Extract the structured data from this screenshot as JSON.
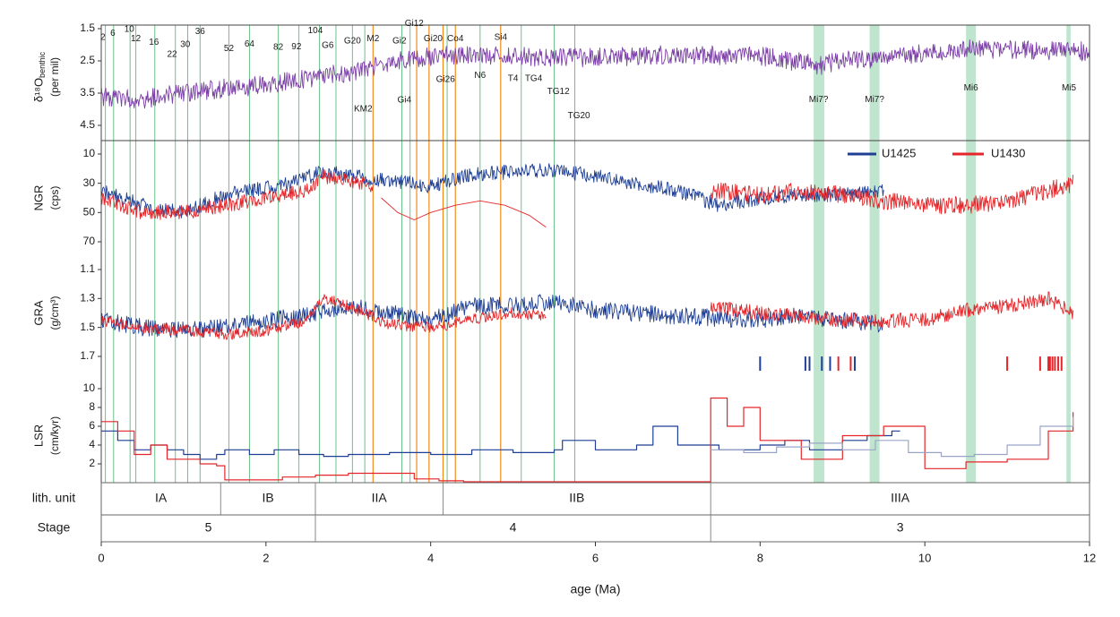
{
  "chart_data": {
    "type": "line",
    "x_axis": {
      "label": "age (Ma)",
      "range": [
        0,
        12
      ],
      "ticks": [
        "0",
        "2",
        "4",
        "6",
        "8",
        "10",
        "12"
      ]
    },
    "legend": {
      "placement": "top-right",
      "entries": [
        {
          "label": "U1425",
          "color": "#1f3f95"
        },
        {
          "label": "U1430",
          "color": "#e4262a"
        }
      ]
    },
    "panels": [
      {
        "id": "d18o",
        "ylabel": "δ¹⁸O",
        "ylabel_sub": "benthic",
        "ylabel_unit": "(per mil)",
        "ylim": [
          1.5,
          4.5
        ],
        "y_reversed": true,
        "yticks": [
          "1.5",
          "2.5",
          "3.5",
          "4.5"
        ],
        "series": [
          {
            "color": "#7b3fa6",
            "noise": 0.3,
            "x": [
              0,
              0.5,
              1,
              1.5,
              2,
              2.5,
              3,
              3.3,
              3.6,
              4,
              4.5,
              5,
              5.5,
              6,
              7,
              8,
              8.5,
              8.7,
              9,
              9.5,
              10,
              10.5,
              11,
              11.5,
              12
            ],
            "y": [
              3.6,
              3.7,
              3.5,
              3.35,
              3.25,
              3.05,
              2.85,
              2.7,
              2.5,
              2.35,
              2.3,
              2.35,
              2.4,
              2.4,
              2.3,
              2.35,
              2.55,
              2.65,
              2.5,
              2.4,
              2.25,
              2.1,
              2.15,
              2.2,
              2.2
            ]
          }
        ]
      },
      {
        "id": "ngr",
        "ylabel": "NGR",
        "ylabel_unit": "(cps)",
        "ylim": [
          10,
          70
        ],
        "y_reversed": true,
        "yticks": [
          "10",
          "30",
          "50",
          "70"
        ],
        "series": [
          {
            "name": "U1425",
            "color": "#1f3f95",
            "noise": 5,
            "x": [
              0,
              0.5,
              1,
              1.5,
              2,
              2.3,
              2.7,
              3,
              3.5,
              4,
              4.5,
              5,
              5.5,
              6,
              6.5,
              7,
              7.5,
              8,
              8.5,
              9,
              9.5
            ],
            "y": [
              35,
              45,
              50,
              38,
              33,
              30,
              22,
              25,
              28,
              32,
              24,
              22,
              21,
              25,
              30,
              35,
              45,
              40,
              38,
              38,
              35
            ]
          },
          {
            "name": "U1430",
            "color": "#e4262a",
            "noise": 5,
            "x": [
              0,
              0.5,
              1,
              1.5,
              2,
              2.5,
              2.7,
              3,
              3.3
            ],
            "y": [
              40,
              50,
              50,
              45,
              40,
              35,
              25,
              28,
              32
            ]
          },
          {
            "name": "U1430",
            "color": "#e4262a",
            "noise": 0,
            "x": [
              3.4,
              3.6,
              3.8,
              4,
              4.3,
              4.6,
              4.9,
              5.2,
              5.4
            ],
            "y": [
              40,
              50,
              55,
              50,
              45,
              42,
              45,
              52,
              60
            ]
          },
          {
            "name": "U1430",
            "color": "#e4262a",
            "noise": 6,
            "x": [
              7.4,
              8,
              8.5,
              9,
              9.5,
              10,
              10.5,
              11,
              11.5,
              11.8
            ],
            "y": [
              35,
              38,
              35,
              38,
              42,
              45,
              45,
              42,
              35,
              30
            ]
          }
        ]
      },
      {
        "id": "gra",
        "ylabel": "GRA",
        "ylabel_unit": "(g/cm³)",
        "ylim": [
          1.1,
          1.7
        ],
        "y_reversed": true,
        "yticks": [
          "1.1",
          "1.3",
          "1.5",
          "1.7"
        ],
        "series": [
          {
            "name": "U1425",
            "color": "#1f3f95",
            "noise": 0.06,
            "x": [
              0,
              0.5,
              1,
              1.5,
              2,
              2.5,
              2.7,
              3,
              3.5,
              4,
              4.5,
              5,
              5.5,
              6,
              7,
              8,
              8.5,
              9,
              9.5
            ],
            "y": [
              1.45,
              1.5,
              1.52,
              1.5,
              1.45,
              1.42,
              1.38,
              1.35,
              1.4,
              1.45,
              1.35,
              1.35,
              1.32,
              1.38,
              1.42,
              1.45,
              1.42,
              1.45,
              1.48
            ]
          },
          {
            "name": "U1430",
            "color": "#e4262a",
            "noise": 0.04,
            "x": [
              0,
              0.5,
              1,
              1.5,
              2,
              2.5,
              2.7,
              3,
              3.5,
              4,
              4.5,
              5,
              5.4
            ],
            "y": [
              1.45,
              1.5,
              1.52,
              1.55,
              1.52,
              1.45,
              1.3,
              1.35,
              1.48,
              1.5,
              1.45,
              1.4,
              1.42
            ]
          },
          {
            "name": "U1430",
            "color": "#e4262a",
            "noise": 0.05,
            "x": [
              7.4,
              8,
              8.5,
              9,
              9.5,
              10,
              10.5,
              11,
              11.5,
              11.8
            ],
            "y": [
              1.35,
              1.4,
              1.42,
              1.45,
              1.45,
              1.45,
              1.38,
              1.35,
              1.3,
              1.4
            ]
          }
        ],
        "tick_marks": {
          "y_value": 1.75,
          "blue": [
            8.0,
            8.55,
            8.6,
            8.75,
            8.85,
            9.15
          ],
          "red": [
            8.95,
            9.1,
            11.0,
            11.4,
            11.5,
            11.52,
            11.55,
            11.58,
            11.62,
            11.66
          ]
        }
      },
      {
        "id": "lsr",
        "ylabel": "LSR",
        "ylabel_unit": "(cm/kyr)",
        "ylim": [
          0,
          10
        ],
        "y_reversed": false,
        "yticks": [
          "2",
          "4",
          "6",
          "8",
          "10"
        ],
        "series": [
          {
            "name": "U1425",
            "color": "#1f3f95",
            "step": true,
            "x": [
              0,
              0.2,
              0.4,
              0.6,
              0.8,
              1.0,
              1.2,
              1.4,
              1.5,
              1.8,
              2.1,
              2.4,
              2.7,
              3.0,
              3.5,
              4.0,
              4.5,
              5.0,
              5.5,
              5.6,
              6.0,
              6.5,
              6.7,
              7.0,
              7.5,
              8.0,
              8.3,
              8.6,
              9.0,
              9.3,
              9.6,
              9.7
            ],
            "y": [
              5.5,
              4.5,
              3.5,
              4,
              3.5,
              3,
              2.5,
              3,
              3.5,
              3,
              3.5,
              3,
              2.8,
              3,
              3.2,
              3,
              3.5,
              3.2,
              3.5,
              4.5,
              3.5,
              4,
              6,
              4,
              3.5,
              4,
              4.5,
              3.5,
              4.5,
              5,
              5.5,
              5.5
            ]
          },
          {
            "name": "U1430",
            "color": "#e4262a",
            "step": true,
            "x": [
              0,
              0.2,
              0.4,
              0.6,
              0.8,
              1.0,
              1.2,
              1.4,
              1.5,
              2.2,
              2.6,
              3.0,
              3.8,
              4.1,
              4.4,
              7.4,
              7.6,
              7.8,
              8.0,
              8.5,
              9.0,
              9.5,
              10.0,
              10.5,
              11.0,
              11.5,
              11.8
            ],
            "y": [
              6.5,
              5.5,
              3,
              4,
              2.5,
              2.5,
              2,
              1.8,
              0.3,
              0.6,
              0.8,
              1.0,
              0.4,
              0.2,
              0.1,
              9,
              6,
              8,
              4.5,
              2.5,
              5,
              6,
              1.5,
              2.2,
              2.5,
              5.5,
              7.5
            ]
          },
          {
            "name": "U1430",
            "color": "#9aa5c6",
            "step": true,
            "x": [
              7.4,
              7.8,
              8.2,
              8.6,
              9.0,
              9.4,
              9.8,
              10.2,
              10.6,
              11.0,
              11.4,
              11.8
            ],
            "y": [
              3.5,
              3.2,
              3.8,
              4.2,
              3.5,
              4.5,
              3.2,
              2.8,
              3.0,
              4.0,
              6.0,
              7.0
            ]
          }
        ]
      }
    ],
    "reference_lines": {
      "green": [
        0.05,
        0.15,
        0.35,
        0.42,
        0.65,
        0.9,
        1.05,
        1.2,
        1.55,
        1.8,
        2.15,
        2.4,
        2.65,
        2.85,
        3.05,
        3.2,
        3.65,
        3.75,
        4.2,
        4.6,
        5.1,
        5.5,
        5.75
      ],
      "orange": [
        3.3,
        3.83,
        3.98,
        4.15,
        4.3,
        4.85
      ],
      "green_bands": [
        [
          8.65,
          8.78
        ],
        [
          9.33,
          9.45
        ],
        [
          10.5,
          10.62
        ],
        [
          11.72,
          11.77
        ]
      ]
    },
    "event_labels": [
      {
        "text": "2",
        "x": 0.02,
        "y": 1.78
      },
      {
        "text": "6",
        "x": 0.14,
        "y": 1.65
      },
      {
        "text": "10",
        "x": 0.34,
        "y": 1.52
      },
      {
        "text": "12",
        "x": 0.42,
        "y": 1.82
      },
      {
        "text": "16",
        "x": 0.64,
        "y": 1.92
      },
      {
        "text": "22",
        "x": 0.86,
        "y": 2.3
      },
      {
        "text": "30",
        "x": 1.02,
        "y": 2.0
      },
      {
        "text": "36",
        "x": 1.2,
        "y": 1.6
      },
      {
        "text": "52",
        "x": 1.55,
        "y": 2.12
      },
      {
        "text": "64",
        "x": 1.8,
        "y": 1.98
      },
      {
        "text": "82",
        "x": 2.15,
        "y": 2.08
      },
      {
        "text": "92",
        "x": 2.37,
        "y": 2.06
      },
      {
        "text": "104",
        "x": 2.6,
        "y": 1.57
      },
      {
        "text": "G6",
        "x": 2.75,
        "y": 2.02
      },
      {
        "text": "G20",
        "x": 3.05,
        "y": 1.88
      },
      {
        "text": "M2",
        "x": 3.3,
        "y": 1.82
      },
      {
        "text": "Gi2",
        "x": 3.62,
        "y": 1.88
      },
      {
        "text": "Gi12",
        "x": 3.8,
        "y": 1.35
      },
      {
        "text": "Gi20",
        "x": 4.03,
        "y": 1.82
      },
      {
        "text": "Co4",
        "x": 4.3,
        "y": 1.82
      },
      {
        "text": "Si4",
        "x": 4.85,
        "y": 1.78
      },
      {
        "text": "KM2",
        "x": 3.18,
        "y": 4.0
      },
      {
        "text": "Gi4",
        "x": 3.68,
        "y": 3.72
      },
      {
        "text": "Gi26",
        "x": 4.18,
        "y": 3.08
      },
      {
        "text": "N6",
        "x": 4.6,
        "y": 2.95
      },
      {
        "text": "T4",
        "x": 5.0,
        "y": 3.05
      },
      {
        "text": "TG4",
        "x": 5.25,
        "y": 3.05
      },
      {
        "text": "TG12",
        "x": 5.55,
        "y": 3.45
      },
      {
        "text": "TG20",
        "x": 5.8,
        "y": 4.2
      },
      {
        "text": "Mi7?",
        "x": 8.71,
        "y": 3.7
      },
      {
        "text": "Mi7?",
        "x": 9.39,
        "y": 3.7
      },
      {
        "text": "Mi6",
        "x": 10.56,
        "y": 3.35
      },
      {
        "text": "Mi5",
        "x": 11.75,
        "y": 3.35
      }
    ],
    "lith_units": {
      "label": "lith. unit",
      "units": [
        {
          "name": "IA",
          "from": 0,
          "to": 1.45
        },
        {
          "name": "IB",
          "from": 1.45,
          "to": 2.6
        },
        {
          "name": "IIA",
          "from": 2.6,
          "to": 4.15
        },
        {
          "name": "IIB",
          "from": 4.15,
          "to": 7.4
        },
        {
          "name": "IIIA",
          "from": 7.4,
          "to": 12
        }
      ]
    },
    "stages": {
      "label": "Stage",
      "units": [
        {
          "name": "5",
          "from": 0,
          "to": 2.6
        },
        {
          "name": "4",
          "from": 2.6,
          "to": 7.4
        },
        {
          "name": "3",
          "from": 7.4,
          "to": 12
        }
      ]
    }
  }
}
